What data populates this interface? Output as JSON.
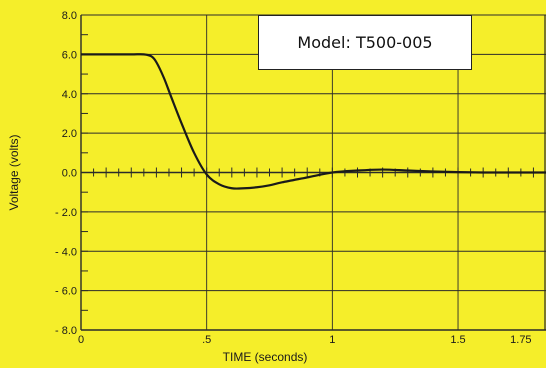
{
  "chart_data": {
    "type": "line",
    "title": "",
    "xlabel": "TIME (seconds)",
    "ylabel": "Voltage (volts)",
    "xlim": [
      0,
      1.85
    ],
    "ylim": [
      -8,
      8
    ],
    "x_ticks": [
      "0",
      ".5",
      "1",
      "1.5",
      "1.75"
    ],
    "y_ticks": [
      "8.0",
      "6.0",
      "4.0",
      "2.0",
      "0.0",
      "- 2.0",
      "- 4.0",
      "- 6.0",
      "- 8.0"
    ],
    "grid": true,
    "series": [
      {
        "x": [
          0,
          0.1,
          0.2,
          0.25,
          0.28,
          0.3,
          0.33,
          0.36,
          0.4,
          0.45,
          0.5,
          0.55,
          0.6,
          0.65,
          0.7,
          0.75,
          0.8,
          0.9,
          1.0,
          1.1,
          1.2,
          1.3,
          1.4,
          1.5,
          1.6,
          1.7,
          1.85
        ],
        "y": [
          6.0,
          6.0,
          6.0,
          6.0,
          5.9,
          5.6,
          4.8,
          3.8,
          2.5,
          1.0,
          -0.1,
          -0.6,
          -0.8,
          -0.8,
          -0.75,
          -0.65,
          -0.5,
          -0.25,
          0.0,
          0.1,
          0.15,
          0.1,
          0.05,
          0.02,
          0.0,
          0.0,
          0.0
        ]
      }
    ],
    "colors": {
      "background": "#f5ee2a",
      "line": "#1a1a1a",
      "grid": "#2a2a2a"
    }
  },
  "annotation": {
    "model_label": "Model: T500-005"
  }
}
